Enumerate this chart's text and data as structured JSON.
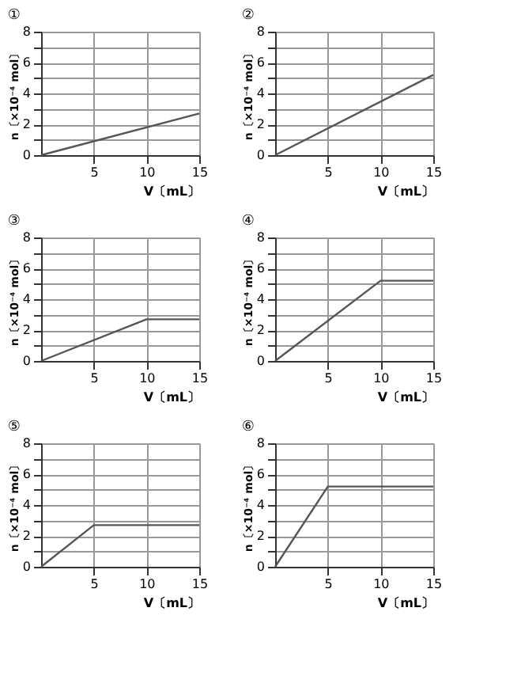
{
  "chart_data": [
    {
      "type": "line",
      "title": "①",
      "xlabel": "V〔mL〕",
      "ylabel": "n〔×10⁻⁴ mol〕",
      "x": [
        0,
        15
      ],
      "values": [
        0,
        2.7
      ],
      "color": "#555555",
      "xlim": [
        0,
        15
      ],
      "xticks": [
        5,
        10,
        15
      ],
      "ylim": [
        0,
        8
      ],
      "yticks": [
        0,
        {
          "value": 1,
          "label": null
        },
        2,
        {
          "value": 3,
          "label": null
        },
        4,
        {
          "value": 5,
          "label": null
        },
        6,
        {
          "value": 7,
          "label": null
        },
        8
      ],
      "grid": true
    },
    {
      "type": "line",
      "title": "②",
      "xlabel": "V〔mL〕",
      "ylabel": "n〔×10⁻⁴ mol〕",
      "x": [
        0,
        15
      ],
      "values": [
        0,
        5.2
      ],
      "color": "#555555",
      "xlim": [
        0,
        15
      ],
      "xticks": [
        5,
        10,
        15
      ],
      "ylim": [
        0,
        8
      ],
      "yticks": [
        0,
        {
          "value": 1,
          "label": null
        },
        2,
        {
          "value": 3,
          "label": null
        },
        4,
        {
          "value": 5,
          "label": null
        },
        6,
        {
          "value": 7,
          "label": null
        },
        8
      ],
      "grid": true
    },
    {
      "type": "line",
      "title": "③",
      "xlabel": "V〔mL〕",
      "ylabel": "n〔×10⁻⁴ mol〕",
      "x": [
        0,
        10,
        15
      ],
      "values": [
        0,
        2.7,
        2.7
      ],
      "color": "#555555",
      "xlim": [
        0,
        15
      ],
      "xticks": [
        5,
        10,
        15
      ],
      "ylim": [
        0,
        8
      ],
      "yticks": [
        0,
        {
          "value": 1,
          "label": null
        },
        2,
        {
          "value": 3,
          "label": null
        },
        4,
        {
          "value": 5,
          "label": null
        },
        6,
        {
          "value": 7,
          "label": null
        },
        8
      ],
      "grid": true
    },
    {
      "type": "line",
      "title": "④",
      "xlabel": "V〔mL〕",
      "ylabel": "n〔×10⁻⁴ mol〕",
      "x": [
        0,
        10,
        15
      ],
      "values": [
        0,
        5.2,
        5.2
      ],
      "color": "#555555",
      "xlim": [
        0,
        15
      ],
      "xticks": [
        5,
        10,
        15
      ],
      "ylim": [
        0,
        8
      ],
      "yticks": [
        0,
        {
          "value": 1,
          "label": null
        },
        2,
        {
          "value": 3,
          "label": null
        },
        4,
        {
          "value": 5,
          "label": null
        },
        6,
        {
          "value": 7,
          "label": null
        },
        8
      ],
      "grid": true
    },
    {
      "type": "line",
      "title": "⑤",
      "xlabel": "V〔mL〕",
      "ylabel": "n〔×10⁻⁴ mol〕",
      "x": [
        0,
        5,
        15
      ],
      "values": [
        0,
        2.7,
        2.7
      ],
      "color": "#555555",
      "xlim": [
        0,
        15
      ],
      "xticks": [
        5,
        10,
        15
      ],
      "ylim": [
        0,
        8
      ],
      "yticks": [
        0,
        {
          "value": 1,
          "label": null
        },
        2,
        {
          "value": 3,
          "label": null
        },
        4,
        {
          "value": 5,
          "label": null
        },
        6,
        {
          "value": 7,
          "label": null
        },
        8
      ],
      "grid": true
    },
    {
      "type": "line",
      "title": "⑥",
      "xlabel": "V〔mL〕",
      "ylabel": "n〔×10⁻⁴ mol〕",
      "x": [
        0,
        5,
        15
      ],
      "values": [
        0,
        5.2,
        5.2
      ],
      "color": "#555555",
      "xlim": [
        0,
        15
      ],
      "xticks": [
        5,
        10,
        15
      ],
      "ylim": [
        0,
        8
      ],
      "yticks": [
        0,
        {
          "value": 1,
          "label": null
        },
        2,
        {
          "value": 3,
          "label": null
        },
        4,
        {
          "value": 5,
          "label": null
        },
        6,
        {
          "value": 7,
          "label": null
        },
        8
      ],
      "grid": true
    }
  ]
}
